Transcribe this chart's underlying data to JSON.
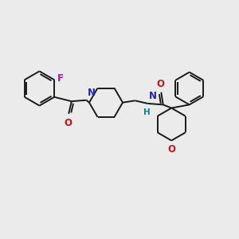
{
  "bg_color": "#ebebeb",
  "bond_color": "#1a1a1a",
  "N_color": "#2222cc",
  "O_color": "#cc1111",
  "F_color": "#cc00cc",
  "H_color": "#008888",
  "line_width": 1.4,
  "figsize": [
    3.0,
    3.0
  ],
  "dpi": 100,
  "xlim": [
    0,
    10
  ],
  "ylim": [
    0,
    10
  ]
}
